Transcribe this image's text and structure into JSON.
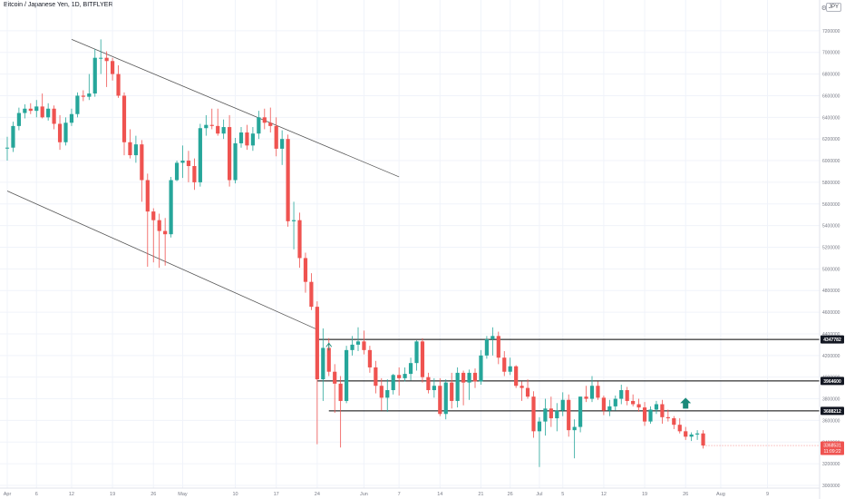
{
  "header": {
    "title": "Bitcoin / Japanese Yen, 1D, BITFLYER",
    "currency": "JPY"
  },
  "colors": {
    "up": "#26a69a",
    "down": "#ef5350",
    "grid": "#f0f3fa",
    "axis_text": "#787b86",
    "trendline": "#555555",
    "level_line": "#000000",
    "arrow": "#1b8a7a"
  },
  "chart_data": {
    "type": "candlestick",
    "title": "Bitcoin / Japanese Yen, 1D, BITFLYER",
    "grid": true,
    "y_scale": "linear",
    "ylim": [
      3000000,
      7400000
    ],
    "y_ticks": [
      7200000,
      7000000,
      6800000,
      6600000,
      6400000,
      6200000,
      6000000,
      5800000,
      5600000,
      5400000,
      5200000,
      5000000,
      4800000,
      4600000,
      4400000,
      4200000,
      4000000,
      3800000,
      3600000,
      3400000,
      3200000,
      3000000
    ],
    "x_ticks": [
      {
        "label": "Apr",
        "day": 0
      },
      {
        "label": "6",
        "day": 5
      },
      {
        "label": "12",
        "day": 11
      },
      {
        "label": "19",
        "day": 18
      },
      {
        "label": "26",
        "day": 25
      },
      {
        "label": "May",
        "day": 30
      },
      {
        "label": "10",
        "day": 39
      },
      {
        "label": "17",
        "day": 46
      },
      {
        "label": "24",
        "day": 53
      },
      {
        "label": "Jun",
        "day": 61
      },
      {
        "label": "7",
        "day": 67
      },
      {
        "label": "14",
        "day": 74
      },
      {
        "label": "21",
        "day": 81
      },
      {
        "label": "26",
        "day": 86
      },
      {
        "label": "Jul",
        "day": 91
      },
      {
        "label": "5",
        "day": 95
      },
      {
        "label": "12",
        "day": 102
      },
      {
        "label": "19",
        "day": 109
      },
      {
        "label": "26",
        "day": 116
      },
      {
        "label": "Aug",
        "day": 122
      },
      {
        "label": "9",
        "day": 130
      }
    ],
    "price_labels": [
      {
        "text": "4347782",
        "value": 4347782
      },
      {
        "text": "3964600",
        "value": 3964600
      },
      {
        "text": "3688212",
        "value": 3688212
      }
    ],
    "last_price": {
      "text": "3368531",
      "value": 3368531,
      "countdown": "11:09:22"
    },
    "levels": [
      {
        "value": 4347782,
        "day_start": 53,
        "day_end": 130
      },
      {
        "value": 3964600,
        "day_start": 53,
        "day_end": 130
      },
      {
        "value": 3688212,
        "day_start": 55,
        "day_end": 130
      }
    ],
    "trendlines": [
      {
        "day1": 11,
        "v1": 7120000,
        "day2": 67,
        "v2": 5850000
      },
      {
        "day1": 0,
        "v1": 5720000,
        "day2": 53,
        "v2": 4440000
      }
    ],
    "arrows": [
      {
        "day": 116,
        "value": 3760000,
        "direction": "up",
        "size": "large"
      },
      {
        "day": 55,
        "value": 4280000,
        "direction": "up",
        "size": "small"
      }
    ],
    "candles": [
      [
        0,
        6120000,
        6220000,
        6000000,
        6120000
      ],
      [
        1,
        6120000,
        6360000,
        6080000,
        6320000
      ],
      [
        2,
        6320000,
        6490000,
        6280000,
        6440000
      ],
      [
        3,
        6440000,
        6520000,
        6390000,
        6480000
      ],
      [
        4,
        6480000,
        6530000,
        6430000,
        6460000
      ],
      [
        5,
        6460000,
        6560000,
        6400000,
        6500000
      ],
      [
        6,
        6500000,
        6620000,
        6390000,
        6400000
      ],
      [
        7,
        6400000,
        6530000,
        6370000,
        6480000
      ],
      [
        8,
        6480000,
        6510000,
        6290000,
        6340000
      ],
      [
        9,
        6340000,
        6420000,
        6100000,
        6170000
      ],
      [
        10,
        6170000,
        6400000,
        6140000,
        6350000
      ],
      [
        11,
        6350000,
        6480000,
        6320000,
        6430000
      ],
      [
        12,
        6430000,
        6630000,
        6400000,
        6600000
      ],
      [
        13,
        6600000,
        6650000,
        6550000,
        6590000
      ],
      [
        14,
        6590000,
        6800000,
        6560000,
        6620000
      ],
      [
        15,
        6620000,
        7030000,
        6590000,
        6950000
      ],
      [
        16,
        6950000,
        7120000,
        6800000,
        6950000
      ],
      [
        17,
        6950000,
        7010000,
        6680000,
        6920000
      ],
      [
        18,
        6920000,
        6950000,
        6740000,
        6800000
      ],
      [
        19,
        6800000,
        6880000,
        6580000,
        6600000
      ],
      [
        20,
        6600000,
        6630000,
        6050000,
        6170000
      ],
      [
        21,
        6170000,
        6290000,
        6020000,
        6050000
      ],
      [
        22,
        6050000,
        6230000,
        5980000,
        6150000
      ],
      [
        23,
        6150000,
        6190000,
        5620000,
        5820000
      ],
      [
        24,
        5820000,
        5880000,
        5020000,
        5530000
      ],
      [
        25,
        5530000,
        5560000,
        5060000,
        5450000
      ],
      [
        26,
        5450000,
        5510000,
        5010000,
        5350000
      ],
      [
        27,
        5350000,
        5470000,
        5030000,
        5320000
      ],
      [
        28,
        5320000,
        5850000,
        5290000,
        5820000
      ],
      [
        29,
        5820000,
        6000000,
        5810000,
        5980000
      ],
      [
        30,
        5980000,
        6140000,
        5840000,
        6000000
      ],
      [
        31,
        6000000,
        6090000,
        5800000,
        5950000
      ],
      [
        32,
        5950000,
        6020000,
        5730000,
        5800000
      ],
      [
        33,
        5800000,
        6340000,
        5760000,
        6300000
      ],
      [
        34,
        6300000,
        6420000,
        6230000,
        6330000
      ],
      [
        35,
        6330000,
        6480000,
        6290000,
        6320000
      ],
      [
        36,
        6320000,
        6480000,
        6230000,
        6250000
      ],
      [
        37,
        6250000,
        6380000,
        6200000,
        6310000
      ],
      [
        38,
        6310000,
        6420000,
        5760000,
        5820000
      ],
      [
        39,
        5820000,
        6210000,
        5790000,
        6160000
      ],
      [
        40,
        6160000,
        6310000,
        6120000,
        6260000
      ],
      [
        41,
        6260000,
        6330000,
        6100000,
        6140000
      ],
      [
        42,
        6140000,
        6310000,
        6090000,
        6250000
      ],
      [
        43,
        6250000,
        6460000,
        6200000,
        6400000
      ],
      [
        44,
        6400000,
        6480000,
        6290000,
        6350000
      ],
      [
        45,
        6350000,
        6490000,
        6260000,
        6320000
      ],
      [
        46,
        6320000,
        6400000,
        6040000,
        6110000
      ],
      [
        47,
        6110000,
        6280000,
        5960000,
        6200000
      ],
      [
        48,
        6200000,
        6240000,
        5390000,
        5440000
      ],
      [
        49,
        5440000,
        5620000,
        5180000,
        5450000
      ],
      [
        50,
        5450000,
        5520000,
        5010000,
        5100000
      ],
      [
        51,
        5100000,
        5150000,
        4780000,
        4880000
      ],
      [
        52,
        4880000,
        4960000,
        4620000,
        4650000
      ],
      [
        53,
        4650000,
        4700000,
        3380000,
        3980000
      ],
      [
        54,
        3980000,
        4450000,
        3780000,
        4270000
      ],
      [
        55,
        4270000,
        4360000,
        4010000,
        4050000
      ],
      [
        56,
        4050000,
        4120000,
        3670000,
        3940000
      ],
      [
        57,
        3940000,
        4010000,
        3350000,
        3780000
      ],
      [
        58,
        3780000,
        4290000,
        3760000,
        4250000
      ],
      [
        59,
        4250000,
        4380000,
        4200000,
        4300000
      ],
      [
        60,
        4300000,
        4460000,
        4240000,
        4330000
      ],
      [
        61,
        4330000,
        4430000,
        4210000,
        4250000
      ],
      [
        62,
        4250000,
        4290000,
        4040000,
        4090000
      ],
      [
        63,
        4090000,
        4150000,
        3850000,
        3920000
      ],
      [
        64,
        3920000,
        3990000,
        3690000,
        3810000
      ],
      [
        65,
        3810000,
        3980000,
        3680000,
        3880000
      ],
      [
        66,
        3880000,
        4030000,
        3840000,
        4020000
      ],
      [
        67,
        4020000,
        4090000,
        3830000,
        3990000
      ],
      [
        68,
        3990000,
        4090000,
        3960000,
        4030000
      ],
      [
        69,
        4030000,
        4180000,
        3970000,
        4130000
      ],
      [
        70,
        4130000,
        4340000,
        4060000,
        4330000
      ],
      [
        71,
        4330000,
        4360000,
        3950000,
        4000000
      ],
      [
        72,
        4000000,
        4040000,
        3850000,
        3880000
      ],
      [
        73,
        3880000,
        3990000,
        3810000,
        3920000
      ],
      [
        74,
        3920000,
        3990000,
        3640000,
        3660000
      ],
      [
        75,
        3660000,
        3980000,
        3610000,
        3950000
      ],
      [
        76,
        3950000,
        4040000,
        3710000,
        3780000
      ],
      [
        77,
        3780000,
        4090000,
        3720000,
        4040000
      ],
      [
        78,
        4040000,
        4060000,
        3740000,
        3950000
      ],
      [
        79,
        3950000,
        4070000,
        3790000,
        4040000
      ],
      [
        80,
        4040000,
        4080000,
        3900000,
        3960000
      ],
      [
        81,
        3960000,
        4250000,
        3930000,
        4200000
      ],
      [
        82,
        4200000,
        4380000,
        4170000,
        4350000
      ],
      [
        83,
        4350000,
        4460000,
        4200000,
        4380000
      ],
      [
        84,
        4380000,
        4420000,
        4120000,
        4180000
      ],
      [
        85,
        4180000,
        4240000,
        4010000,
        4050000
      ],
      [
        86,
        4050000,
        4180000,
        4020000,
        4100000
      ],
      [
        87,
        4100000,
        4110000,
        3900000,
        3920000
      ],
      [
        88,
        3920000,
        3960000,
        3780000,
        3900000
      ],
      [
        89,
        3900000,
        3980000,
        3800000,
        3820000
      ],
      [
        90,
        3820000,
        3870000,
        3440000,
        3500000
      ],
      [
        91,
        3500000,
        3630000,
        3170000,
        3590000
      ],
      [
        92,
        3590000,
        3800000,
        3460000,
        3710000
      ],
      [
        93,
        3710000,
        3820000,
        3540000,
        3620000
      ],
      [
        94,
        3620000,
        3760000,
        3500000,
        3690000
      ],
      [
        95,
        3690000,
        3860000,
        3640000,
        3790000
      ],
      [
        96,
        3790000,
        3840000,
        3450000,
        3510000
      ],
      [
        97,
        3510000,
        3610000,
        3250000,
        3540000
      ],
      [
        98,
        3540000,
        3820000,
        3490000,
        3820000
      ],
      [
        99,
        3820000,
        3920000,
        3770000,
        3800000
      ],
      [
        100,
        3800000,
        4010000,
        3770000,
        3920000
      ],
      [
        101,
        3920000,
        3960000,
        3790000,
        3810000
      ],
      [
        102,
        3810000,
        3830000,
        3650000,
        3690000
      ],
      [
        103,
        3690000,
        3790000,
        3640000,
        3730000
      ],
      [
        104,
        3730000,
        3830000,
        3690000,
        3800000
      ],
      [
        105,
        3800000,
        3930000,
        3750000,
        3880000
      ],
      [
        106,
        3880000,
        3910000,
        3740000,
        3780000
      ],
      [
        107,
        3780000,
        3840000,
        3730000,
        3750000
      ],
      [
        108,
        3750000,
        3800000,
        3680000,
        3720000
      ],
      [
        109,
        3720000,
        3770000,
        3550000,
        3590000
      ],
      [
        110,
        3590000,
        3730000,
        3570000,
        3700000
      ],
      [
        111,
        3700000,
        3780000,
        3660000,
        3750000
      ],
      [
        112,
        3750000,
        3790000,
        3570000,
        3630000
      ],
      [
        113,
        3630000,
        3700000,
        3590000,
        3620000
      ],
      [
        114,
        3620000,
        3640000,
        3520000,
        3560000
      ],
      [
        115,
        3560000,
        3620000,
        3480000,
        3500000
      ],
      [
        116,
        3500000,
        3540000,
        3420000,
        3450000
      ],
      [
        117,
        3450000,
        3490000,
        3410000,
        3470000
      ],
      [
        118,
        3470000,
        3510000,
        3420000,
        3480000
      ],
      [
        119,
        3480000,
        3510000,
        3340000,
        3368531
      ]
    ]
  }
}
